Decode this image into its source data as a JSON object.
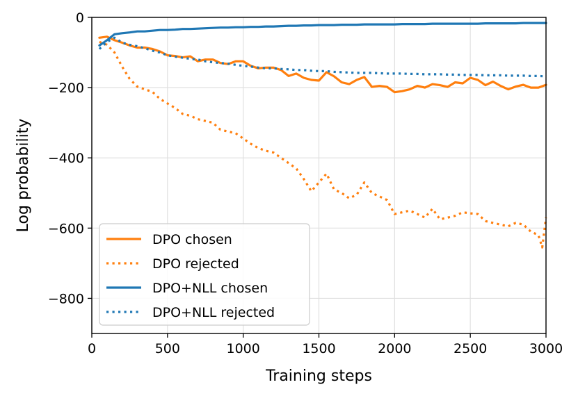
{
  "chart_data": {
    "type": "line",
    "title": "",
    "xlabel": "Training steps",
    "ylabel": "Log probability",
    "xlim": [
      0,
      3000
    ],
    "ylim": [
      -900,
      0
    ],
    "xticks": [
      0,
      500,
      1000,
      1500,
      2000,
      2500,
      3000
    ],
    "yticks": [
      0,
      -200,
      -400,
      -600,
      -800
    ],
    "xtick_labels": [
      "0",
      "500",
      "1000",
      "1500",
      "2000",
      "2500",
      "3000"
    ],
    "ytick_labels": [
      "0",
      "−200",
      "−400",
      "−600",
      "−800"
    ],
    "grid": true,
    "legend_position": "lower-left",
    "series": [
      {
        "name": "DPO chosen",
        "color": "#ff7f0e",
        "style": "solid",
        "x": [
          50,
          100,
          150,
          200,
          250,
          300,
          350,
          400,
          450,
          500,
          550,
          600,
          650,
          700,
          750,
          800,
          850,
          900,
          950,
          1000,
          1050,
          1100,
          1150,
          1200,
          1250,
          1300,
          1350,
          1400,
          1450,
          1500,
          1550,
          1600,
          1650,
          1700,
          1750,
          1800,
          1850,
          1900,
          1950,
          2000,
          2050,
          2100,
          2150,
          2200,
          2250,
          2300,
          2350,
          2400,
          2450,
          2500,
          2550,
          2600,
          2650,
          2700,
          2750,
          2800,
          2850,
          2900,
          2950,
          3000
        ],
        "values": [
          -58,
          -55,
          -65,
          -72,
          -80,
          -86,
          -86,
          -90,
          -97,
          -108,
          -110,
          -114,
          -111,
          -125,
          -120,
          -120,
          -130,
          -133,
          -125,
          -125,
          -138,
          -145,
          -143,
          -143,
          -150,
          -167,
          -160,
          -172,
          -178,
          -180,
          -156,
          -168,
          -185,
          -190,
          -178,
          -170,
          -198,
          -195,
          -198,
          -213,
          -210,
          -205,
          -195,
          -200,
          -190,
          -193,
          -198,
          -185,
          -188,
          -172,
          -178,
          -193,
          -183,
          -195,
          -205,
          -197,
          -192,
          -200,
          -200,
          -192
        ]
      },
      {
        "name": "DPO rejected",
        "color": "#ff7f0e",
        "style": "dotted",
        "x": [
          50,
          100,
          150,
          200,
          250,
          300,
          350,
          400,
          450,
          500,
          550,
          600,
          650,
          700,
          750,
          800,
          850,
          900,
          950,
          1000,
          1050,
          1100,
          1150,
          1200,
          1250,
          1300,
          1350,
          1400,
          1450,
          1500,
          1550,
          1600,
          1650,
          1700,
          1750,
          1800,
          1850,
          1900,
          1950,
          2000,
          2050,
          2100,
          2150,
          2200,
          2250,
          2300,
          2350,
          2400,
          2450,
          2500,
          2550,
          2600,
          2650,
          2700,
          2750,
          2800,
          2850,
          2900,
          2950,
          2975,
          3000
        ],
        "values": [
          -70,
          -78,
          -100,
          -140,
          -175,
          -197,
          -205,
          -212,
          -232,
          -245,
          -258,
          -275,
          -280,
          -290,
          -295,
          -300,
          -320,
          -325,
          -330,
          -345,
          -360,
          -372,
          -380,
          -385,
          -400,
          -415,
          -430,
          -460,
          -495,
          -470,
          -445,
          -490,
          -500,
          -515,
          -505,
          -470,
          -500,
          -510,
          -520,
          -560,
          -555,
          -550,
          -560,
          -570,
          -545,
          -575,
          -570,
          -565,
          -555,
          -558,
          -560,
          -580,
          -585,
          -590,
          -595,
          -585,
          -590,
          -610,
          -620,
          -655,
          -570
        ]
      },
      {
        "name": "DPO+NLL chosen",
        "color": "#1f77b4",
        "style": "solid",
        "x": [
          50,
          100,
          150,
          200,
          250,
          300,
          350,
          400,
          450,
          500,
          550,
          600,
          650,
          700,
          750,
          800,
          850,
          900,
          950,
          1000,
          1050,
          1100,
          1150,
          1200,
          1250,
          1300,
          1350,
          1400,
          1450,
          1500,
          1550,
          1600,
          1650,
          1700,
          1750,
          1800,
          1850,
          1900,
          1950,
          2000,
          2050,
          2100,
          2150,
          2200,
          2250,
          2300,
          2350,
          2400,
          2450,
          2500,
          2550,
          2600,
          2650,
          2700,
          2750,
          2800,
          2850,
          2900,
          2950,
          3000
        ],
        "values": [
          -80,
          -65,
          -48,
          -45,
          -43,
          -40,
          -40,
          -38,
          -36,
          -36,
          -35,
          -33,
          -33,
          -32,
          -31,
          -30,
          -29,
          -29,
          -28,
          -28,
          -27,
          -27,
          -26,
          -26,
          -25,
          -24,
          -24,
          -23,
          -23,
          -22,
          -22,
          -22,
          -21,
          -21,
          -21,
          -20,
          -20,
          -20,
          -20,
          -20,
          -19,
          -19,
          -19,
          -19,
          -18,
          -18,
          -18,
          -18,
          -18,
          -18,
          -18,
          -17,
          -17,
          -17,
          -17,
          -17,
          -16,
          -16,
          -16,
          -16
        ]
      },
      {
        "name": "DPO+NLL rejected",
        "color": "#1f77b4",
        "style": "dotted",
        "x": [
          50,
          100,
          150,
          200,
          250,
          300,
          350,
          400,
          450,
          500,
          550,
          600,
          650,
          700,
          750,
          800,
          850,
          900,
          950,
          1000,
          1050,
          1100,
          1150,
          1200,
          1250,
          1300,
          1350,
          1400,
          1450,
          1500,
          1550,
          1600,
          1650,
          1700,
          1750,
          1800,
          1850,
          1900,
          1950,
          2000,
          2050,
          2100,
          2150,
          2200,
          2250,
          2300,
          2350,
          2400,
          2450,
          2500,
          2550,
          2600,
          2650,
          2700,
          2750,
          2800,
          2850,
          2900,
          2950,
          3000
        ],
        "values": [
          -90,
          -70,
          -58,
          -72,
          -78,
          -82,
          -88,
          -95,
          -100,
          -108,
          -112,
          -115,
          -118,
          -120,
          -125,
          -128,
          -130,
          -132,
          -135,
          -138,
          -140,
          -143,
          -145,
          -145,
          -147,
          -148,
          -150,
          -150,
          -152,
          -153,
          -153,
          -155,
          -156,
          -157,
          -158,
          -158,
          -158,
          -159,
          -160,
          -160,
          -160,
          -161,
          -161,
          -162,
          -162,
          -162,
          -163,
          -163,
          -164,
          -164,
          -164,
          -165,
          -165,
          -165,
          -166,
          -166,
          -166,
          -167,
          -167,
          -168
        ]
      }
    ]
  }
}
